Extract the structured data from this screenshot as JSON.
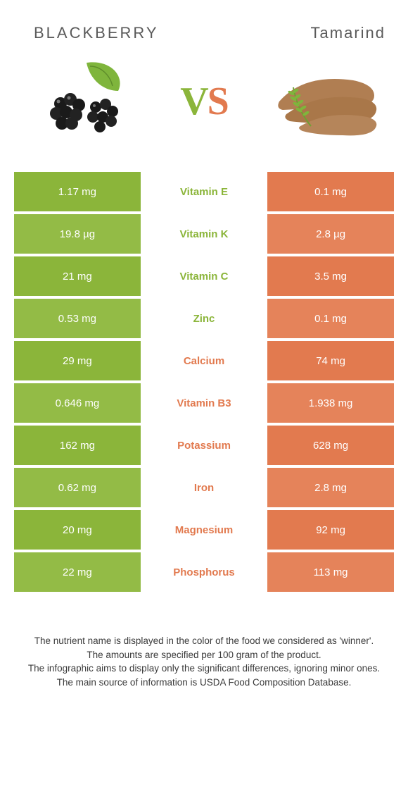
{
  "colors": {
    "green": "#8bb53a",
    "green_alt": "#93bb46",
    "orange": "#e27a4f",
    "orange_alt": "#e5835a",
    "white": "#ffffff",
    "text": "#5a5a5a"
  },
  "header": {
    "left_title": "BLACKBERRY",
    "right_title": "Tamarind",
    "vs_v": "V",
    "vs_s": "S"
  },
  "table": {
    "rows": [
      {
        "left": "1.17 mg",
        "label": "Vitamin E",
        "right": "0.1 mg",
        "winner": "left"
      },
      {
        "left": "19.8 µg",
        "label": "Vitamin K",
        "right": "2.8 µg",
        "winner": "left"
      },
      {
        "left": "21 mg",
        "label": "Vitamin C",
        "right": "3.5 mg",
        "winner": "left"
      },
      {
        "left": "0.53 mg",
        "label": "Zinc",
        "right": "0.1 mg",
        "winner": "left"
      },
      {
        "left": "29 mg",
        "label": "Calcium",
        "right": "74 mg",
        "winner": "right"
      },
      {
        "left": "0.646 mg",
        "label": "Vitamin B3",
        "right": "1.938 mg",
        "winner": "right"
      },
      {
        "left": "162 mg",
        "label": "Potassium",
        "right": "628 mg",
        "winner": "right"
      },
      {
        "left": "0.62 mg",
        "label": "Iron",
        "right": "2.8 mg",
        "winner": "right"
      },
      {
        "left": "20 mg",
        "label": "Magnesium",
        "right": "92 mg",
        "winner": "right"
      },
      {
        "left": "22 mg",
        "label": "Phosphorus",
        "right": "113 mg",
        "winner": "right"
      }
    ]
  },
  "footer": {
    "line1": "The nutrient name is displayed in the color of the food we considered as 'winner'.",
    "line2": "The amounts are specified per 100 gram of the product.",
    "line3": "The infographic aims to display only the significant differences, ignoring minor ones.",
    "line4": "The main source of information is USDA Food Composition Database."
  }
}
